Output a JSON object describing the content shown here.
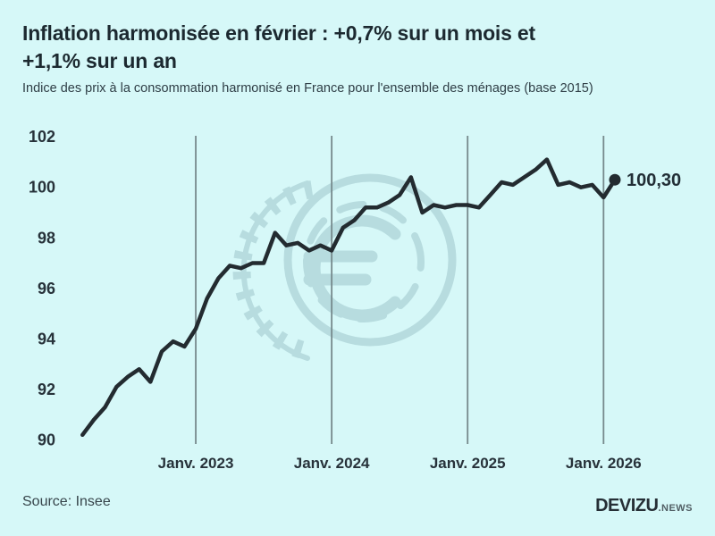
{
  "header": {
    "title_lines": [
      "Inflation harmonisée en février : +0,7% sur un mois et",
      "+1,1% sur un an"
    ],
    "subtitle": "Indice des prix à la consommation harmonisé en France pour l'ensemble des ménages (base 2015)"
  },
  "footer": {
    "source": "Source: Insee",
    "brand": "DEVIZU",
    "brand_suffix": ".NEWS"
  },
  "colors": {
    "background": "#d6f8f8",
    "line": "#232b30",
    "gridline": "#76898c",
    "axis_text": "#27323a",
    "end_label_text": "#222e36",
    "watermark": "#b7dcdf"
  },
  "chart_data": {
    "type": "line",
    "title": "Inflation harmonisée en février : +0,7% sur un mois et +1,1% sur un an",
    "subtitle": "Indice des prix à la consommation harmonisé en France pour l'ensemble des ménages (base 2015)",
    "x": [
      "2022-03",
      "2022-04",
      "2022-05",
      "2022-06",
      "2022-07",
      "2022-08",
      "2022-09",
      "2022-10",
      "2022-11",
      "2022-12",
      "2023-01",
      "2023-02",
      "2023-03",
      "2023-04",
      "2023-05",
      "2023-06",
      "2023-07",
      "2023-08",
      "2023-09",
      "2023-10",
      "2023-11",
      "2023-12",
      "2024-01",
      "2024-02",
      "2024-03",
      "2024-04",
      "2024-05",
      "2024-06",
      "2024-07",
      "2024-08",
      "2024-09",
      "2024-10",
      "2024-11",
      "2024-12",
      "2025-01",
      "2025-02",
      "2025-03",
      "2025-04",
      "2025-05",
      "2025-06",
      "2025-07",
      "2025-08",
      "2025-09",
      "2025-10",
      "2025-11",
      "2025-12",
      "2026-01",
      "2026-02"
    ],
    "values": [
      90.2,
      90.8,
      91.3,
      92.1,
      92.5,
      92.8,
      92.3,
      93.5,
      93.9,
      93.7,
      94.4,
      95.6,
      96.4,
      96.9,
      96.8,
      97.0,
      97.0,
      98.2,
      97.7,
      97.8,
      97.5,
      97.7,
      97.5,
      98.4,
      98.7,
      99.2,
      99.2,
      99.4,
      99.7,
      100.4,
      99.0,
      99.3,
      99.2,
      99.3,
      99.3,
      99.2,
      99.7,
      100.2,
      100.1,
      100.4,
      100.7,
      101.1,
      100.1,
      100.2,
      100.0,
      100.1,
      99.6,
      100.3
    ],
    "x_tick_labels": [
      "Janv. 2023",
      "Janv. 2024",
      "Janv. 2025",
      "Janv. 2026"
    ],
    "x_tick_indices": [
      10,
      22,
      34,
      46
    ],
    "y_ticks": [
      90,
      92,
      94,
      96,
      98,
      100,
      102
    ],
    "ylim": [
      90,
      102
    ],
    "grid": "vertical-only",
    "legend": "none",
    "end_point_label": "100,30",
    "last_value": 100.3,
    "watermark": "euro-coin-icon"
  }
}
